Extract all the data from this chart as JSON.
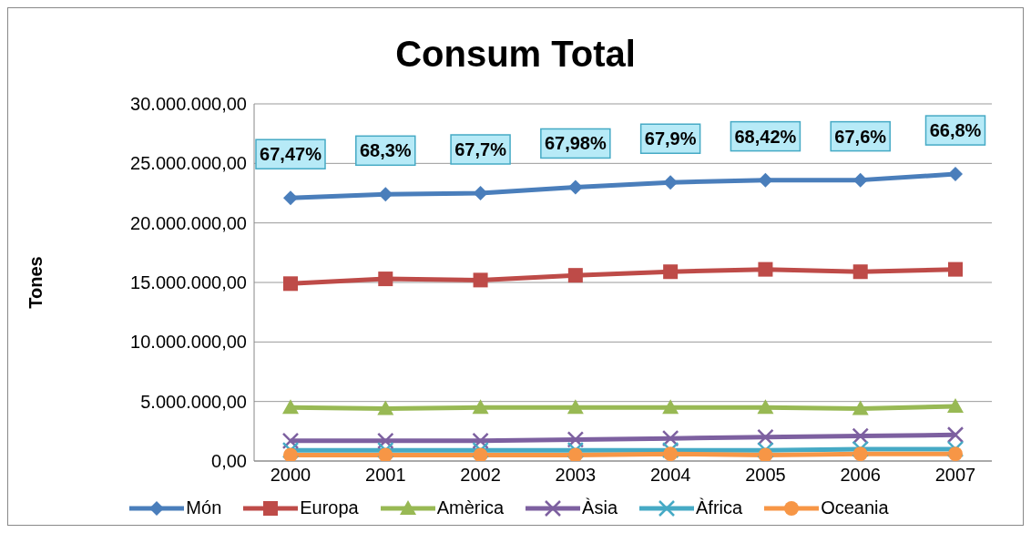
{
  "chart_data": {
    "type": "line",
    "title": "Consum Total",
    "ylabel": "Tones",
    "categories": [
      "2000",
      "2001",
      "2002",
      "2003",
      "2004",
      "2005",
      "2006",
      "2007"
    ],
    "series": [
      {
        "name": "Món",
        "color": "#4a7ebb",
        "marker": "diamond",
        "values": [
          22100000,
          22400000,
          22500000,
          23000000,
          23400000,
          23600000,
          23600000,
          24100000
        ]
      },
      {
        "name": "Europa",
        "color": "#be4b48",
        "marker": "square",
        "values": [
          14900000,
          15300000,
          15200000,
          15600000,
          15900000,
          16100000,
          15900000,
          16100000
        ]
      },
      {
        "name": "Amèrica",
        "color": "#98b954",
        "marker": "triangle",
        "values": [
          4500000,
          4400000,
          4500000,
          4500000,
          4500000,
          4500000,
          4400000,
          4600000
        ]
      },
      {
        "name": "Àsia",
        "color": "#7d60a0",
        "marker": "cross",
        "values": [
          1700000,
          1700000,
          1700000,
          1800000,
          1900000,
          2000000,
          2100000,
          2200000
        ]
      },
      {
        "name": "Àfrica",
        "color": "#46aac5",
        "marker": "cross",
        "values": [
          900000,
          900000,
          900000,
          900000,
          900000,
          900000,
          1000000,
          1000000
        ]
      },
      {
        "name": "Oceania",
        "color": "#f79646",
        "marker": "circle",
        "values": [
          500000,
          500000,
          500000,
          500000,
          600000,
          500000,
          600000,
          600000
        ]
      }
    ],
    "ylim": [
      0,
      30000000
    ],
    "yticks": [
      {
        "value": 0,
        "label": "0,00"
      },
      {
        "value": 5000000,
        "label": "5.000.000,00"
      },
      {
        "value": 10000000,
        "label": "10.000.000,00"
      },
      {
        "value": 15000000,
        "label": "15.000.000,00"
      },
      {
        "value": 20000000,
        "label": "20.000.000,00"
      },
      {
        "value": 25000000,
        "label": "25.000.000,00"
      },
      {
        "value": 30000000,
        "label": "30.000.000,00"
      }
    ],
    "grid": "y",
    "legend": "bottom",
    "annotations": [
      {
        "text": "67,47%",
        "x": "2000",
        "y": 22100000
      },
      {
        "text": "68,3%",
        "x": "2001",
        "y": 22400000
      },
      {
        "text": "67,7%",
        "x": "2002",
        "y": 22500000
      },
      {
        "text": "67,98%",
        "x": "2003",
        "y": 23000000
      },
      {
        "text": "67,9%",
        "x": "2004",
        "y": 23400000
      },
      {
        "text": "68,42%",
        "x": "2005",
        "y": 23600000
      },
      {
        "text": "67,6%",
        "x": "2006",
        "y": 23600000
      },
      {
        "text": "66,8%",
        "x": "2007",
        "y": 24100000
      }
    ]
  }
}
